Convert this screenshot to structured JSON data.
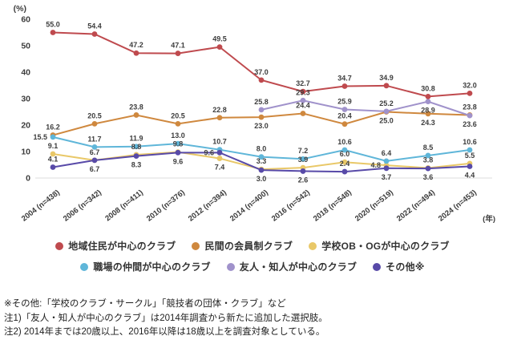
{
  "chart_data": {
    "type": "line",
    "title": "",
    "unit_label": "(%)",
    "year_axis_label": "(年)",
    "ylim": [
      0,
      60
    ],
    "yticks": [
      0,
      10,
      20,
      30,
      40,
      50,
      60
    ],
    "grid": false,
    "legend_position": "bottom",
    "categories": [
      "2004 (n=438)",
      "2006 (n=342)",
      "2008 (n=411)",
      "2010 (n=376)",
      "2012 (n=394)",
      "2014 (n=400)",
      "2016 (n=542)",
      "2018 (n=548)",
      "2020 (n=519)",
      "2022 (n=494)",
      "2024 (n=453)"
    ],
    "series": [
      {
        "name": "地域住民が中心のクラブ",
        "color": "#bf4a4e",
        "values": [
          55.0,
          54.4,
          47.2,
          47.1,
          49.5,
          37.0,
          32.7,
          34.7,
          34.9,
          30.8,
          32.0
        ]
      },
      {
        "name": "民間の会員制クラブ",
        "color": "#cf883e",
        "values": [
          16.2,
          20.5,
          23.8,
          20.5,
          22.8,
          23.0,
          24.4,
          20.4,
          25.0,
          24.3,
          23.8
        ]
      },
      {
        "name": "学校OB・OGが中心のクラブ",
        "color": "#e9c868",
        "values": [
          9.1,
          6.7,
          8.8,
          9.8,
          7.4,
          3.3,
          3.9,
          6.0,
          4.8,
          3.8,
          5.5
        ]
      },
      {
        "name": "職場の仲間が中心のクラブ",
        "color": "#5fb6d9",
        "values": [
          15.5,
          11.7,
          11.9,
          13.0,
          10.7,
          8.0,
          7.2,
          10.6,
          6.4,
          8.5,
          10.6
        ]
      },
      {
        "name": "友人・知人が中心のクラブ",
        "color": "#a092cb",
        "values": [
          null,
          null,
          null,
          null,
          null,
          25.8,
          29.3,
          25.9,
          25.2,
          28.9,
          23.6
        ]
      },
      {
        "name": "その他※",
        "color": "#584aa8",
        "values": [
          4.1,
          6.7,
          8.3,
          9.6,
          9.6,
          3.0,
          2.6,
          2.4,
          3.7,
          3.6,
          4.4
        ]
      }
    ]
  },
  "footnotes": [
    "※その他:「学校のクラブ・サークル」「競技者の団体・クラブ」など",
    "注1)「友人・知人が中心のクラブ」は2014年調査から新たに追加した選択肢。",
    "注2) 2014年までは20歳以上、2016年以降は18歳以上を調査対象としている。"
  ]
}
